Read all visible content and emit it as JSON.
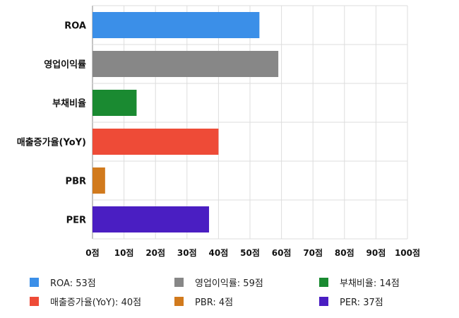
{
  "chart_data": {
    "type": "bar",
    "orientation": "horizontal",
    "categories": [
      "ROA",
      "영업이익률",
      "부채비율",
      "매출증가율(YoY)",
      "PBR",
      "PER"
    ],
    "values": [
      53,
      59,
      14,
      40,
      4,
      37
    ],
    "colors": [
      "#3b8fe8",
      "#878787",
      "#1a8a31",
      "#ee4b37",
      "#d17a1d",
      "#4a1ec2"
    ],
    "xlim": [
      0,
      100
    ],
    "x_ticks": [
      "0점",
      "10점",
      "20점",
      "30점",
      "40점",
      "50점",
      "60점",
      "70점",
      "80점",
      "90점",
      "100점"
    ],
    "grid": true,
    "legend_position": "bottom"
  },
  "legend": [
    {
      "label": "ROA: 53점",
      "color": "#3b8fe8"
    },
    {
      "label": "영업이익률: 59점",
      "color": "#878787"
    },
    {
      "label": "부채비율: 14점",
      "color": "#1a8a31"
    },
    {
      "label": "매출증가율(YoY): 40점",
      "color": "#ee4b37"
    },
    {
      "label": "PBR: 4점",
      "color": "#d17a1d"
    },
    {
      "label": "PER: 37점",
      "color": "#4a1ec2"
    }
  ]
}
